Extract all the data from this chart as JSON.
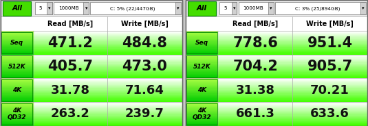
{
  "panels": [
    {
      "header_num": "5",
      "header_mb": "1000MB",
      "header_disk": "C: 5% (22/447GB)",
      "rows": [
        "Seq",
        "512K",
        "4K",
        "4K\nQD32"
      ],
      "read": [
        "471.2",
        "405.7",
        "31.78",
        "263.2"
      ],
      "write": [
        "484.8",
        "473.0",
        "71.64",
        "239.7"
      ]
    },
    {
      "header_num": "5",
      "header_mb": "1000MB",
      "header_disk": "C: 3% (25/894GB)",
      "rows": [
        "Seq",
        "512K",
        "4K",
        "4K\nQD32"
      ],
      "read": [
        "778.6",
        "704.2",
        "31.38",
        "661.3"
      ],
      "write": [
        "951.4",
        "905.7",
        "70.21",
        "633.6"
      ]
    }
  ],
  "col_headers": [
    "Read [MB/s]",
    "Write [MB/s]"
  ],
  "green_bright": "#00ee00",
  "green_label_top": "#88ee44",
  "green_label_bot": "#44cc00",
  "green_cell_top": "#ffffff",
  "green_cell_bot": "#44ff00",
  "white": "#ffffff",
  "black": "#000000",
  "gray_border": "#aaaaaa",
  "gray_dark": "#666666",
  "bg_color": "#c8c8c8",
  "panel_sep": "#888888"
}
